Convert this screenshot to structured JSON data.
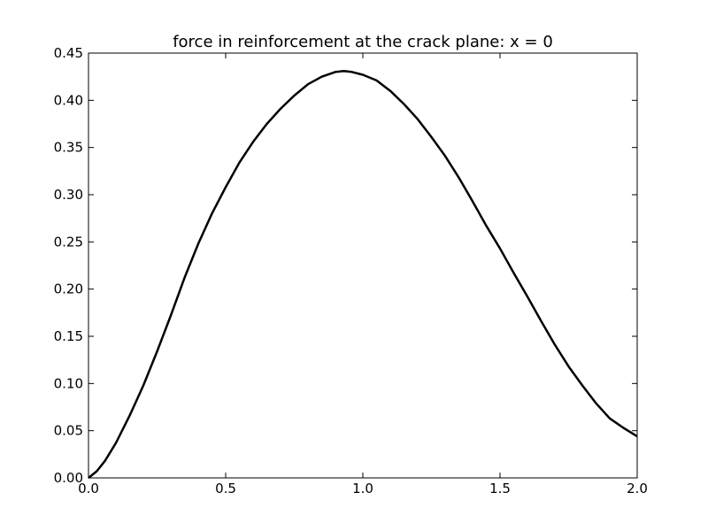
{
  "chart_data": {
    "type": "line",
    "title": "force in reinforcement at the crack plane: x = 0",
    "xlabel": "",
    "ylabel": "",
    "xlim": [
      0.0,
      2.0
    ],
    "ylim": [
      0.0,
      0.45
    ],
    "grid": false,
    "x_ticks": [
      "0.0",
      "0.5",
      "1.0",
      "1.5",
      "2.0"
    ],
    "y_ticks": [
      "0.00",
      "0.05",
      "0.10",
      "0.15",
      "0.20",
      "0.25",
      "0.30",
      "0.35",
      "0.40",
      "0.45"
    ],
    "series": [
      {
        "color": "#000000",
        "x": [
          0.0,
          0.03,
          0.06,
          0.1,
          0.15,
          0.2,
          0.25,
          0.3,
          0.35,
          0.4,
          0.45,
          0.5,
          0.55,
          0.6,
          0.65,
          0.7,
          0.75,
          0.8,
          0.85,
          0.9,
          0.93,
          0.96,
          1.0,
          1.05,
          1.1,
          1.15,
          1.2,
          1.25,
          1.3,
          1.35,
          1.4,
          1.45,
          1.5,
          1.55,
          1.6,
          1.65,
          1.7,
          1.75,
          1.8,
          1.85,
          1.9,
          1.95,
          2.0
        ],
        "y": [
          0.0,
          0.007,
          0.018,
          0.037,
          0.066,
          0.098,
          0.134,
          0.172,
          0.212,
          0.248,
          0.28,
          0.308,
          0.334,
          0.356,
          0.375,
          0.391,
          0.405,
          0.417,
          0.425,
          0.43,
          0.431,
          0.43,
          0.427,
          0.421,
          0.41,
          0.396,
          0.38,
          0.361,
          0.341,
          0.318,
          0.293,
          0.267,
          0.243,
          0.217,
          0.192,
          0.166,
          0.141,
          0.118,
          0.098,
          0.079,
          0.063,
          0.053,
          0.044
        ]
      }
    ]
  }
}
